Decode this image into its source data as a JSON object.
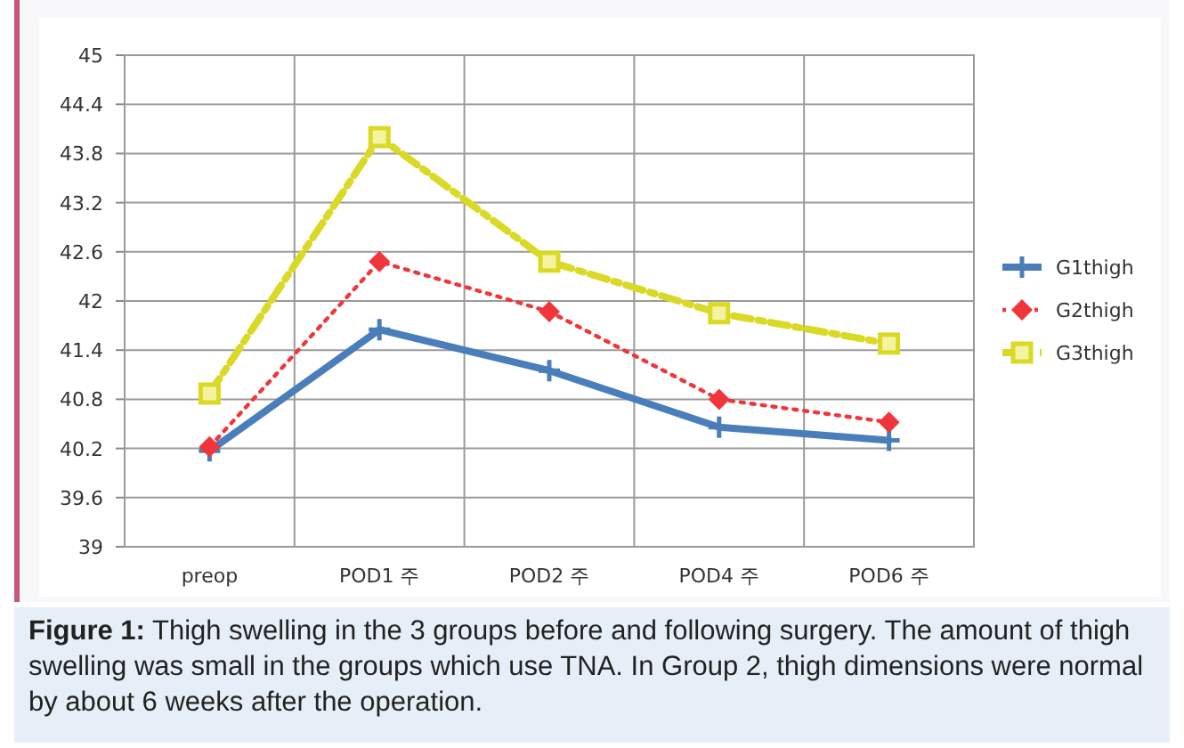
{
  "chart_data": {
    "type": "line",
    "categories": [
      "preop",
      "POD1 주",
      "POD2 주",
      "POD4 주",
      "POD6 주"
    ],
    "series": [
      {
        "name": "G1thigh",
        "color": "#4a7ebb",
        "marker": "cross",
        "line_style": "solid",
        "values": [
          40.17,
          41.65,
          41.15,
          40.46,
          40.3
        ]
      },
      {
        "name": "G2thigh",
        "color": "#f0363a",
        "marker": "diamond",
        "line_style": "dotted",
        "values": [
          40.22,
          42.48,
          41.87,
          40.8,
          40.52
        ]
      },
      {
        "name": "G3thigh",
        "color": "#d9d926",
        "marker": "square",
        "line_style": "dashed",
        "values": [
          40.87,
          44.0,
          42.48,
          41.85,
          41.48
        ]
      }
    ],
    "ylim": [
      39,
      45
    ],
    "yticks": [
      39,
      39.6,
      40.2,
      40.8,
      41.4,
      42,
      42.6,
      43.2,
      43.8,
      44.4,
      45
    ],
    "grid": true,
    "legend": "right",
    "annotations": [
      "Figure 1: Thigh swelling in the 3 groups before and following surgery. The amount of thigh swelling was small in the groups which use TNA. In Group 2, thigh dimensions were normal by about 6 weeks after the operation."
    ]
  }
}
